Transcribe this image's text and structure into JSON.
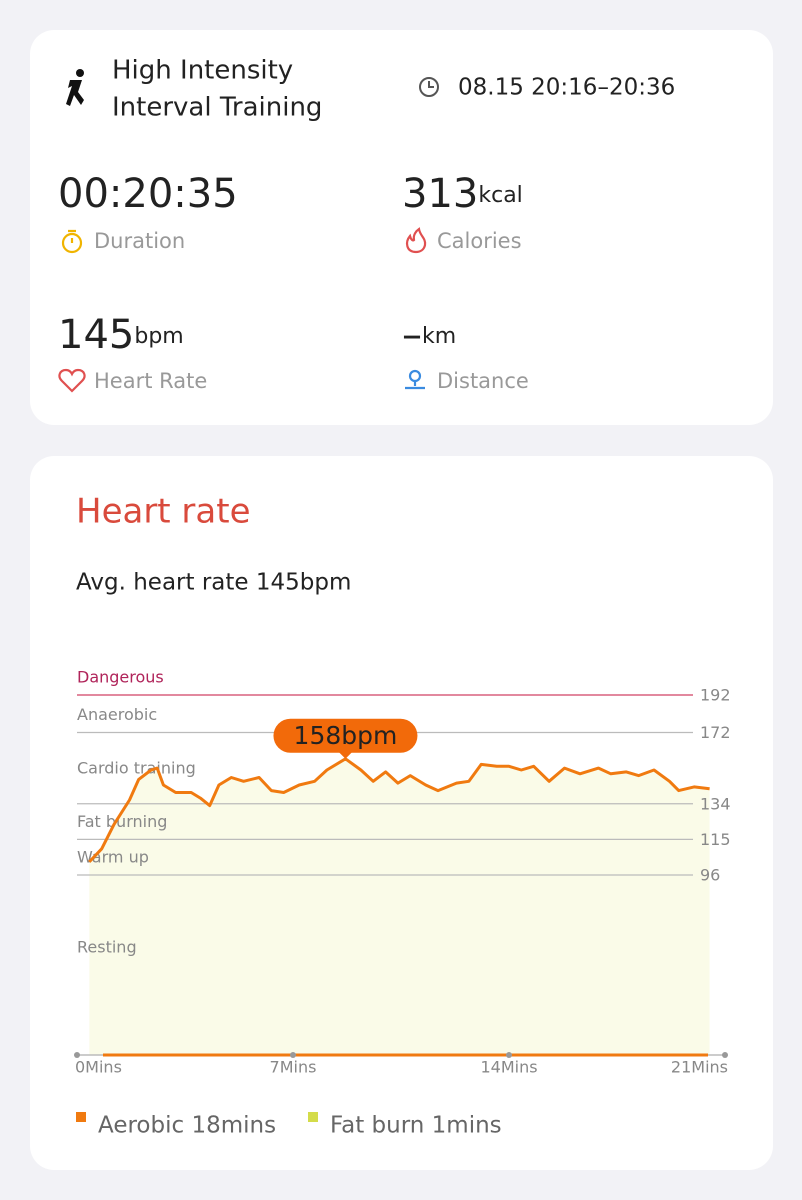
{
  "header": {
    "title_lines": [
      "High Intensity",
      "Interval Training"
    ],
    "time": "08.15 20:16–20:36"
  },
  "stats": [
    {
      "value": "00:20:35",
      "label": "Duration"
    },
    {
      "value": "313",
      "unit": "kcal",
      "label": "Calories"
    },
    {
      "value": "145",
      "unit": "bpm",
      "label": "Heart Rate"
    },
    {
      "value": "–",
      "unit": "km",
      "label": "Distance"
    }
  ],
  "heart_rate": {
    "title": "Heart rate",
    "subtitle": "Avg. heart rate 145bpm"
  },
  "chart_data": {
    "type": "line",
    "zones": [
      "Dangerous",
      "Anaerobic",
      "Cardio training",
      "Fat burning",
      "Warm up",
      "Resting"
    ],
    "x": [
      0.4,
      0.8,
      1.2,
      1.7,
      2.0,
      2.4,
      2.6,
      2.8,
      3.2,
      3.7,
      4.0,
      4.3,
      4.6,
      5.0,
      5.4,
      5.9,
      6.3,
      6.7,
      7.2,
      7.7,
      8.1,
      8.7,
      9.2,
      9.6,
      10.0,
      10.4,
      10.8,
      11.3,
      11.7,
      12.3,
      12.7,
      13.1,
      13.6,
      14.0,
      14.4,
      14.8,
      15.3,
      15.8,
      16.3,
      16.9,
      17.3,
      17.8,
      18.2,
      18.7,
      19.2,
      19.5,
      20.0,
      20.5
    ],
    "values": [
      103,
      110,
      123,
      136,
      147,
      152,
      153,
      144,
      140,
      140,
      137,
      133,
      144,
      148,
      146,
      148,
      141,
      140,
      144,
      146,
      152,
      158,
      152,
      146,
      151,
      145,
      149,
      144,
      141,
      145,
      146,
      155,
      154,
      154,
      152,
      154,
      146,
      153,
      150,
      153,
      150,
      151,
      149,
      152,
      146,
      141,
      143,
      142
    ],
    "color": "#f07a10",
    "xlim": [
      0,
      21
    ],
    "xticks": [
      {
        "value": 0,
        "label": "0Mins"
      },
      {
        "value": 7,
        "label": "7Mins"
      },
      {
        "value": 14,
        "label": "14Mins"
      },
      {
        "value": 21,
        "label": "21Mins"
      }
    ],
    "ylim": [
      0,
      192
    ],
    "yticks": [
      96,
      115,
      134,
      172,
      192
    ],
    "annotations": [
      {
        "text": "158bpm",
        "x": 8.7,
        "y": 158
      }
    ],
    "legend": [
      {
        "name": "Aerobic 18mins",
        "color": "#f07a10"
      },
      {
        "name": "Fat burn 1mins",
        "color": "#d4dc4a"
      }
    ]
  }
}
